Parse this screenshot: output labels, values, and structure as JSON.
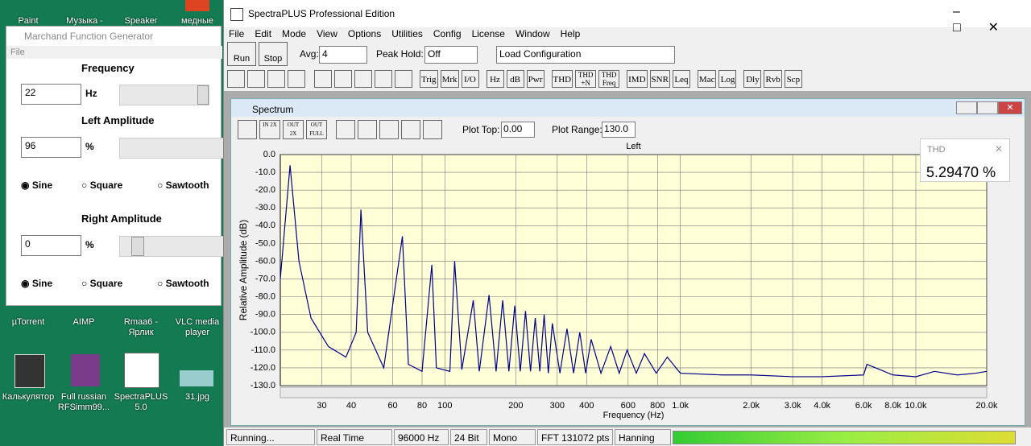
{
  "desktop": {
    "icons": [
      "Paint",
      "Музыка -",
      "Speaker",
      "медные",
      "µTorrent",
      "AIMP",
      "Rmaa6 - Ярлик",
      "VLC media player",
      "Калькулятор",
      "Full russian RFSimm99...",
      "SpectraPLUS 5.0",
      "31.jpg"
    ]
  },
  "generator": {
    "title": "Marchand Function Generator",
    "menu": "File",
    "frequency_label": "Frequency",
    "frequency": "22",
    "frequency_unit": "Hz",
    "left_label": "Left Amplitude",
    "left_value": "96",
    "left_unit": "%",
    "left_waves": [
      "Sine",
      "Square",
      "Sawtooth"
    ],
    "right_label": "Right Amplitude",
    "right_value": "0",
    "right_unit": "%",
    "right_waves": [
      "Sine",
      "Square",
      "Sawtooth"
    ]
  },
  "app": {
    "title": "SpectraPLUS Professional Edition",
    "menu": [
      "File",
      "Edit",
      "Mode",
      "View",
      "Options",
      "Utilities",
      "Config",
      "License",
      "Window",
      "Help"
    ],
    "run": "Run",
    "stop": "Stop",
    "avg_label": "Avg:",
    "avg": "4",
    "peak_label": "Peak Hold:",
    "peak": "Off",
    "config": "Load Configuration",
    "buttons": [
      "Trig",
      "Mrk",
      "I/O",
      "Hz",
      "dB",
      "Pwr",
      "THD",
      "THD +N",
      "THD Freq",
      "IMD",
      "SNR",
      "Leq",
      "Mac",
      "Log",
      "Dly",
      "Rvb",
      "Scp"
    ],
    "status": [
      "Running...",
      "Real Time",
      "96000 Hz",
      "24 Bit",
      "Mono",
      "FFT 131072 pts",
      "Hanning"
    ]
  },
  "spectrum": {
    "title": "Spectrum",
    "zoom": [
      "IN 2X",
      "OUT 2X",
      "OUT FULL"
    ],
    "plot_top_label": "Plot Top:",
    "plot_top": "0.00",
    "plot_range_label": "Plot Range:",
    "plot_range": "130.0",
    "channel": "Left",
    "y_label": "Relative Amplitude (dB)",
    "x_label": "Frequency (Hz)",
    "log_x": true,
    "grid": true,
    "color": "#00008b",
    "xlim": [
      20,
      20000
    ],
    "ylim": [
      -130,
      0
    ],
    "xticks": [
      30,
      40,
      60,
      80,
      100,
      200,
      300,
      400,
      600,
      800,
      {
        "value": 1000,
        "label": "1.0k"
      },
      {
        "value": 2000,
        "label": "2.0k"
      },
      {
        "value": 3000,
        "label": "3.0k"
      },
      {
        "value": 4000,
        "label": "4.0k"
      },
      {
        "value": 6000,
        "label": "6.0k"
      },
      {
        "value": 8000,
        "label": "8.0k"
      },
      {
        "value": 10000,
        "label": "10.0k"
      },
      {
        "value": 20000,
        "label": "20.0k"
      }
    ],
    "yticks": [
      {
        "value": 0,
        "label": "0.0"
      },
      {
        "value": -10,
        "label": "-10.0"
      },
      {
        "value": -20,
        "label": "-20.0"
      },
      {
        "value": -30,
        "label": "-30.0"
      },
      {
        "value": -40,
        "label": "-40.0"
      },
      {
        "value": -50,
        "label": "-50.0"
      },
      {
        "value": -60,
        "label": "-60.0"
      },
      {
        "value": -70,
        "label": "-70.0"
      },
      {
        "value": -80,
        "label": "-80.0"
      },
      {
        "value": -90,
        "label": "-90.0"
      },
      {
        "value": -100,
        "label": "-100.0"
      },
      {
        "value": -110,
        "label": "-110.0"
      },
      {
        "value": -120,
        "label": "-120.0"
      },
      {
        "value": -130,
        "label": "-130.0"
      }
    ],
    "x": [
      20,
      22,
      24,
      27,
      32,
      38,
      42,
      44,
      47,
      55,
      66,
      70,
      80,
      88,
      92,
      105,
      110,
      118,
      132,
      140,
      154,
      165,
      176,
      187,
      198,
      209,
      220,
      231,
      242,
      253,
      264,
      275,
      286,
      308,
      330,
      352,
      374,
      396,
      418,
      460,
      506,
      550,
      594,
      650,
      704,
      790,
      880,
      1000,
      1500,
      2000,
      3000,
      4000,
      6000,
      6200,
      8000,
      10000,
      12000,
      15000,
      18000,
      20000
    ],
    "values": [
      -70,
      -6,
      -60,
      -92,
      -108,
      -114,
      -100,
      -31,
      -100,
      -120,
      -46,
      -118,
      -122,
      -62,
      -120,
      -122,
      -60,
      -121,
      -82,
      -122,
      -79,
      -122,
      -82,
      -122,
      -85,
      -122,
      -88,
      -122,
      -92,
      -122,
      -90,
      -123,
      -95,
      -123,
      -98,
      -123,
      -100,
      -123,
      -104,
      -123,
      -108,
      -123,
      -110,
      -123,
      -112,
      -123,
      -114,
      -123,
      -124,
      -124,
      -125,
      -125,
      -124,
      -118,
      -124,
      -125,
      -122,
      -124,
      -123,
      -122
    ]
  },
  "thd": {
    "label": "THD",
    "value": "5.29470 %"
  }
}
